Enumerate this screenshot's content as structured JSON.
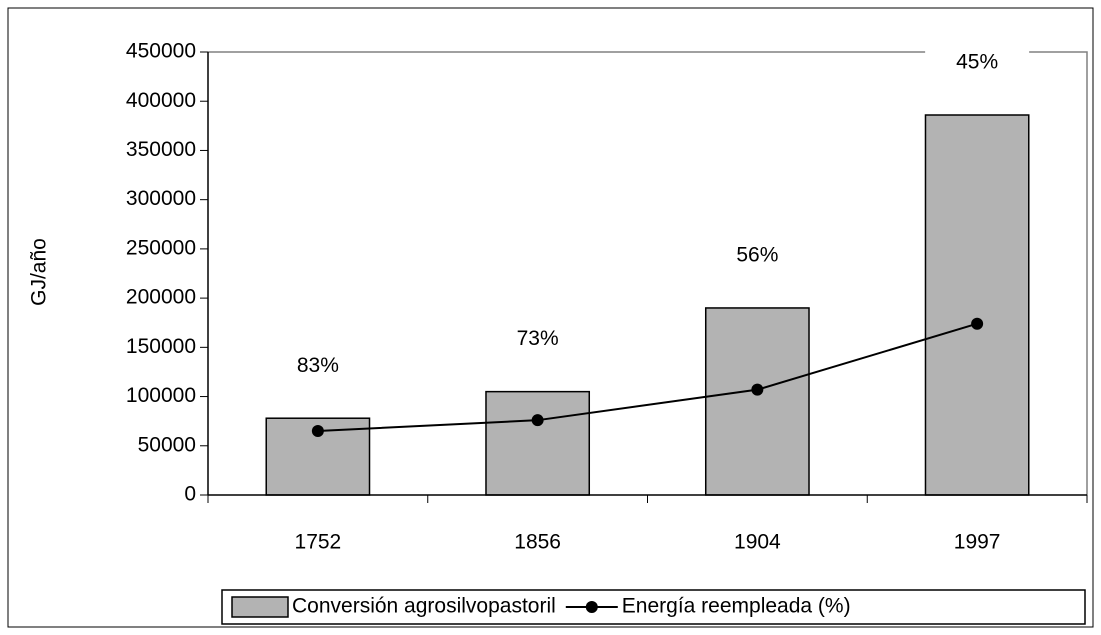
{
  "chart_data": {
    "type": "bar",
    "y_label": "GJ/año",
    "categories": [
      "1752",
      "1856",
      "1904",
      "1997"
    ],
    "series": [
      {
        "name": "Conversión agrosilvopastoril",
        "type": "bar",
        "color": "#b3b3b3",
        "values": [
          78000,
          105000,
          190000,
          386000
        ]
      },
      {
        "name": "Energía reempleada (%)",
        "type": "line",
        "color": "#000000",
        "values": [
          65000,
          76000,
          107000,
          174000
        ]
      }
    ],
    "annotations": [
      "83%",
      "73%",
      "56%",
      "45%"
    ],
    "ylim": [
      0,
      450000
    ],
    "yticks": [
      0,
      50000,
      100000,
      150000,
      200000,
      250000,
      300000,
      350000,
      400000,
      450000
    ],
    "legend": "bottom"
  }
}
